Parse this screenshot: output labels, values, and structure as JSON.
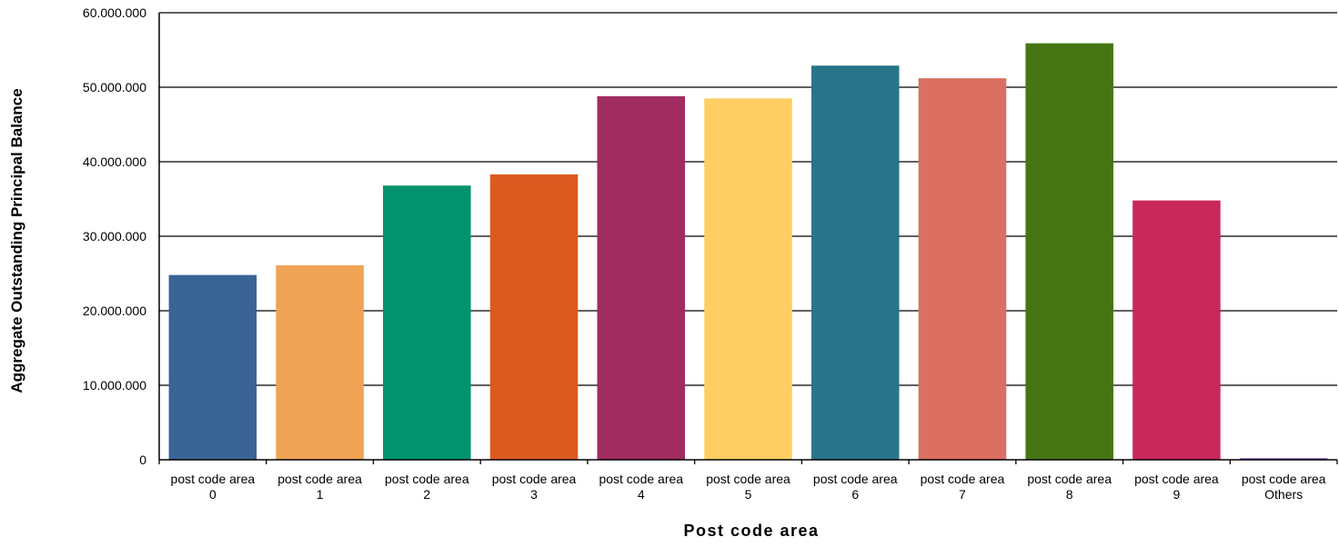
{
  "chart_data": {
    "type": "bar",
    "title": "",
    "xlabel": "Post code area",
    "ylabel": "Aggregate Outstanding Principal Balance",
    "ylim": [
      0,
      60000000
    ],
    "yticks": [
      0,
      10000000,
      20000000,
      30000000,
      40000000,
      50000000,
      60000000
    ],
    "ytick_labels": [
      "0",
      "10.000.000",
      "20.000.000",
      "30.000.000",
      "40.000.000",
      "50.000.000",
      "60.000.000"
    ],
    "grid": true,
    "legend": "none",
    "categories": [
      [
        "post code area",
        "0"
      ],
      [
        "post code area",
        "1"
      ],
      [
        "post code area",
        "2"
      ],
      [
        "post code area",
        "3"
      ],
      [
        "post code area",
        "4"
      ],
      [
        "post code area",
        "5"
      ],
      [
        "post code area",
        "6"
      ],
      [
        "post code area",
        "7"
      ],
      [
        "post code area",
        "8"
      ],
      [
        "post code area",
        "9"
      ],
      [
        "post code area",
        "Others"
      ]
    ],
    "values": [
      24800000,
      26100000,
      36800000,
      38300000,
      48800000,
      48500000,
      52900000,
      51200000,
      55900000,
      34800000,
      200000
    ],
    "colors": [
      "#3A6496",
      "#EFA355",
      "#00936E",
      "#DC5A1F",
      "#A12C60",
      "#FECE62",
      "#28758A",
      "#DB6F62",
      "#467614",
      "#C9285A",
      "#7C3FB8"
    ]
  }
}
